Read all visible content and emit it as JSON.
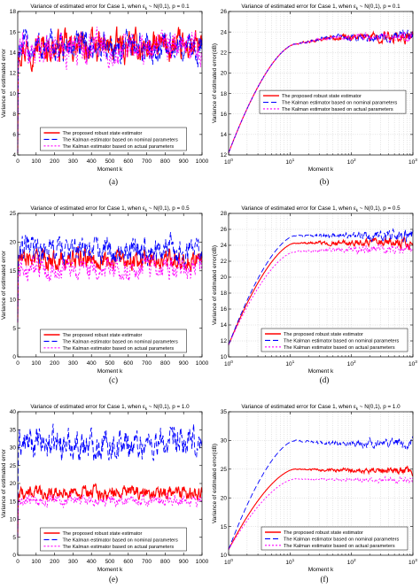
{
  "colors": {
    "robust": "#ff0000",
    "nominal": "#0000ff",
    "actual": "#ff00ff",
    "grid": "#c8c8c8"
  },
  "chart_data": [
    {
      "id": "a",
      "caption": "(a)",
      "type": "line",
      "xscale": "linear",
      "title_main": "Variance of estimated error for Case 1, when ",
      "title_sym": "ε",
      "title_sub": "k",
      "title_tail": " ~ N(0,1), p = 0.1",
      "xlabel": "Moment k",
      "ylabel": "Variance of estimated error",
      "xlim": [
        0,
        1000
      ],
      "ylim": [
        4,
        18
      ],
      "xticks": [
        0,
        100,
        200,
        300,
        400,
        500,
        600,
        700,
        800,
        900,
        1000
      ],
      "yticks": [
        4,
        6,
        8,
        10,
        12,
        14,
        16,
        18
      ],
      "xtick_labels": [
        "0",
        "100",
        "200",
        "300",
        "400",
        "500",
        "600",
        "700",
        "800",
        "900",
        "1000"
      ],
      "ytick_labels": [
        "4",
        "6",
        "8",
        "10",
        "12",
        "14",
        "16",
        "18"
      ],
      "grid": false,
      "legend": "lower-center",
      "series": [
        {
          "name": "The proposed robust state estimator",
          "key": "robust",
          "dash": "",
          "mean": 14.5,
          "amp": 0.9,
          "start": 4.2
        },
        {
          "name": "The Kalman estimator based on nominal parameters",
          "key": "nominal",
          "dash": "6,3",
          "mean": 14.5,
          "amp": 0.9,
          "start": 4.2
        },
        {
          "name": "The Kalman estimator based on actual parameters",
          "key": "actual",
          "dash": "2,2",
          "mean": 14.5,
          "amp": 0.9,
          "start": 4.2
        }
      ]
    },
    {
      "id": "b",
      "caption": "(b)",
      "type": "line",
      "xscale": "log",
      "title_main": "Variance of estimated error for Case 1, when ",
      "title_sym": "ε",
      "title_sub": "k",
      "title_tail": " ~ N(0,1), p = 0.1",
      "xlabel": "Moment k",
      "ylabel": "Variance of estimated error(dB)",
      "xlim": [
        1,
        1000
      ],
      "ylim": [
        12,
        26
      ],
      "xticks": [
        1,
        10,
        100,
        1000
      ],
      "yticks": [
        12,
        14,
        16,
        18,
        20,
        22,
        24,
        26
      ],
      "xtick_labels": [
        "10",
        "10",
        "10",
        "10"
      ],
      "xtick_exp": [
        "0",
        "1",
        "2",
        "3"
      ],
      "ytick_labels": [
        "12",
        "14",
        "16",
        "18",
        "20",
        "22",
        "24",
        "26"
      ],
      "grid": true,
      "legend": "center-right",
      "series": [
        {
          "name": "The proposed robust state estimator",
          "key": "robust",
          "dash": "",
          "start": 12.2,
          "peak": 22.8,
          "plateau": 23.5,
          "amp": 0.4
        },
        {
          "name": "The Kalman estimator based on nominal parameters",
          "key": "nominal",
          "dash": "6,3",
          "start": 12.2,
          "peak": 22.8,
          "plateau": 23.5,
          "amp": 0.4
        },
        {
          "name": "The Kalman estimator based on actual parameters",
          "key": "actual",
          "dash": "2,2",
          "start": 12.2,
          "peak": 22.8,
          "plateau": 23.5,
          "amp": 0.4
        }
      ]
    },
    {
      "id": "c",
      "caption": "(c)",
      "type": "line",
      "xscale": "linear",
      "title_main": "Variance of estimated error for Case 1, when ",
      "title_sym": "ε",
      "title_sub": "k",
      "title_tail": " ~ N(0,1), p = 0.5",
      "xlabel": "Moment k",
      "ylabel": "Variance of estimated error",
      "xlim": [
        0,
        1000
      ],
      "ylim": [
        0,
        25
      ],
      "xticks": [
        0,
        100,
        200,
        300,
        400,
        500,
        600,
        700,
        800,
        900,
        1000
      ],
      "yticks": [
        0,
        5,
        10,
        15,
        20,
        25
      ],
      "xtick_labels": [
        "0",
        "100",
        "200",
        "300",
        "400",
        "500",
        "600",
        "700",
        "800",
        "900",
        "1000"
      ],
      "ytick_labels": [
        "0",
        "5",
        "10",
        "15",
        "20",
        "25"
      ],
      "grid": false,
      "legend": "lower-center",
      "series": [
        {
          "name": "The proposed robust state estimator",
          "key": "robust",
          "dash": "",
          "mean": 17,
          "amp": 1.0,
          "start": 6
        },
        {
          "name": "The Kalman estimator based on nominal parameters",
          "key": "nominal",
          "dash": "6,3",
          "mean": 18.5,
          "amp": 1.4,
          "start": 6
        },
        {
          "name": "The Kalman estimator based on actual parameters",
          "key": "actual",
          "dash": "2,2",
          "mean": 15.3,
          "amp": 1.1,
          "start": 6
        }
      ]
    },
    {
      "id": "d",
      "caption": "(d)",
      "type": "line",
      "xscale": "log",
      "title_main": "Variance of estimated error for Case 1, when ",
      "title_sym": "ε",
      "title_sub": "k",
      "title_tail": " ~ N(0,1), p = 0.5",
      "xlabel": "Moment k",
      "ylabel": "Variance of estimated error(dB)",
      "xlim": [
        1,
        1000
      ],
      "ylim": [
        10,
        28
      ],
      "xticks": [
        1,
        10,
        100,
        1000
      ],
      "yticks": [
        10,
        12,
        14,
        16,
        18,
        20,
        22,
        24,
        26,
        28
      ],
      "xtick_labels": [
        "10",
        "10",
        "10",
        "10"
      ],
      "xtick_exp": [
        "0",
        "1",
        "2",
        "3"
      ],
      "ytick_labels": [
        "10",
        "12",
        "14",
        "16",
        "18",
        "20",
        "22",
        "24",
        "26",
        "28"
      ],
      "grid": true,
      "legend": "lower-right",
      "series": [
        {
          "name": "The proposed robust state estimator",
          "key": "robust",
          "dash": "",
          "start": 11.5,
          "peak": 24.3,
          "plateau": 24.3,
          "amp": 0.5
        },
        {
          "name": "The Kalman estimator based on nominal parameters",
          "key": "nominal",
          "dash": "6,3",
          "start": 11.5,
          "peak": 25.2,
          "plateau": 25.2,
          "amp": 0.6
        },
        {
          "name": "The Kalman estimator based on actual parameters",
          "key": "actual",
          "dash": "2,2",
          "start": 11.5,
          "peak": 23.2,
          "plateau": 23.4,
          "amp": 0.5
        }
      ]
    },
    {
      "id": "e",
      "caption": "(e)",
      "type": "line",
      "xscale": "linear",
      "title_main": "Variance of estimated error for Case 1, when ",
      "title_sym": "ε",
      "title_sub": "k",
      "title_tail": " ~ N(0,1), p = 1.0",
      "xlabel": "Moment k",
      "ylabel": "Variance of estimated error",
      "xlim": [
        0,
        1000
      ],
      "ylim": [
        0,
        40
      ],
      "xticks": [
        0,
        100,
        200,
        300,
        400,
        500,
        600,
        700,
        800,
        900,
        1000
      ],
      "yticks": [
        0,
        5,
        10,
        15,
        20,
        25,
        30,
        35,
        40
      ],
      "xtick_labels": [
        "0",
        "100",
        "200",
        "300",
        "400",
        "500",
        "600",
        "700",
        "800",
        "900",
        "1000"
      ],
      "ytick_labels": [
        "0",
        "5",
        "10",
        "15",
        "20",
        "25",
        "30",
        "35",
        "40"
      ],
      "grid": false,
      "legend": "lower-center",
      "series": [
        {
          "name": "The proposed robust state estimator",
          "key": "robust",
          "dash": "",
          "mean": 17.5,
          "amp": 1.1,
          "start": 5
        },
        {
          "name": "The Kalman estimator based on nominal parameters",
          "key": "nominal",
          "dash": "6,3",
          "mean": 31,
          "amp": 2.5,
          "start": 5
        },
        {
          "name": "The Kalman estimator based on actual parameters",
          "key": "actual",
          "dash": "2,2",
          "mean": 15.2,
          "amp": 0.9,
          "start": 5
        }
      ]
    },
    {
      "id": "f",
      "caption": "(f)",
      "type": "line",
      "xscale": "log",
      "title_main": "Variance of estimated error for Case 1, when ",
      "title_sym": "ε",
      "title_sub": "k",
      "title_tail": " ~ N(0,1), p = 1.0",
      "xlabel": "Moment k",
      "ylabel": "Variance of estimated error(dB)",
      "xlim": [
        1,
        1000
      ],
      "ylim": [
        10,
        35
      ],
      "xticks": [
        1,
        10,
        100,
        1000
      ],
      "yticks": [
        10,
        15,
        20,
        25,
        30,
        35
      ],
      "xtick_labels": [
        "10",
        "10",
        "10",
        "10"
      ],
      "xtick_exp": [
        "0",
        "1",
        "2",
        "3"
      ],
      "ytick_labels": [
        "10",
        "15",
        "20",
        "25",
        "30",
        "35"
      ],
      "grid": true,
      "legend": "lower-right",
      "series": [
        {
          "name": "The proposed robust state estimator",
          "key": "robust",
          "dash": "",
          "start": 11,
          "peak": 25,
          "plateau": 24.8,
          "amp": 0.5
        },
        {
          "name": "The Kalman estimator based on nominal parameters",
          "key": "nominal",
          "dash": "6,3",
          "start": 11,
          "peak": 30,
          "plateau": 29.5,
          "amp": 0.7
        },
        {
          "name": "The Kalman estimator based on actual parameters",
          "key": "actual",
          "dash": "2,2",
          "start": 11,
          "peak": 23.3,
          "plateau": 23.2,
          "amp": 0.4
        }
      ]
    }
  ]
}
